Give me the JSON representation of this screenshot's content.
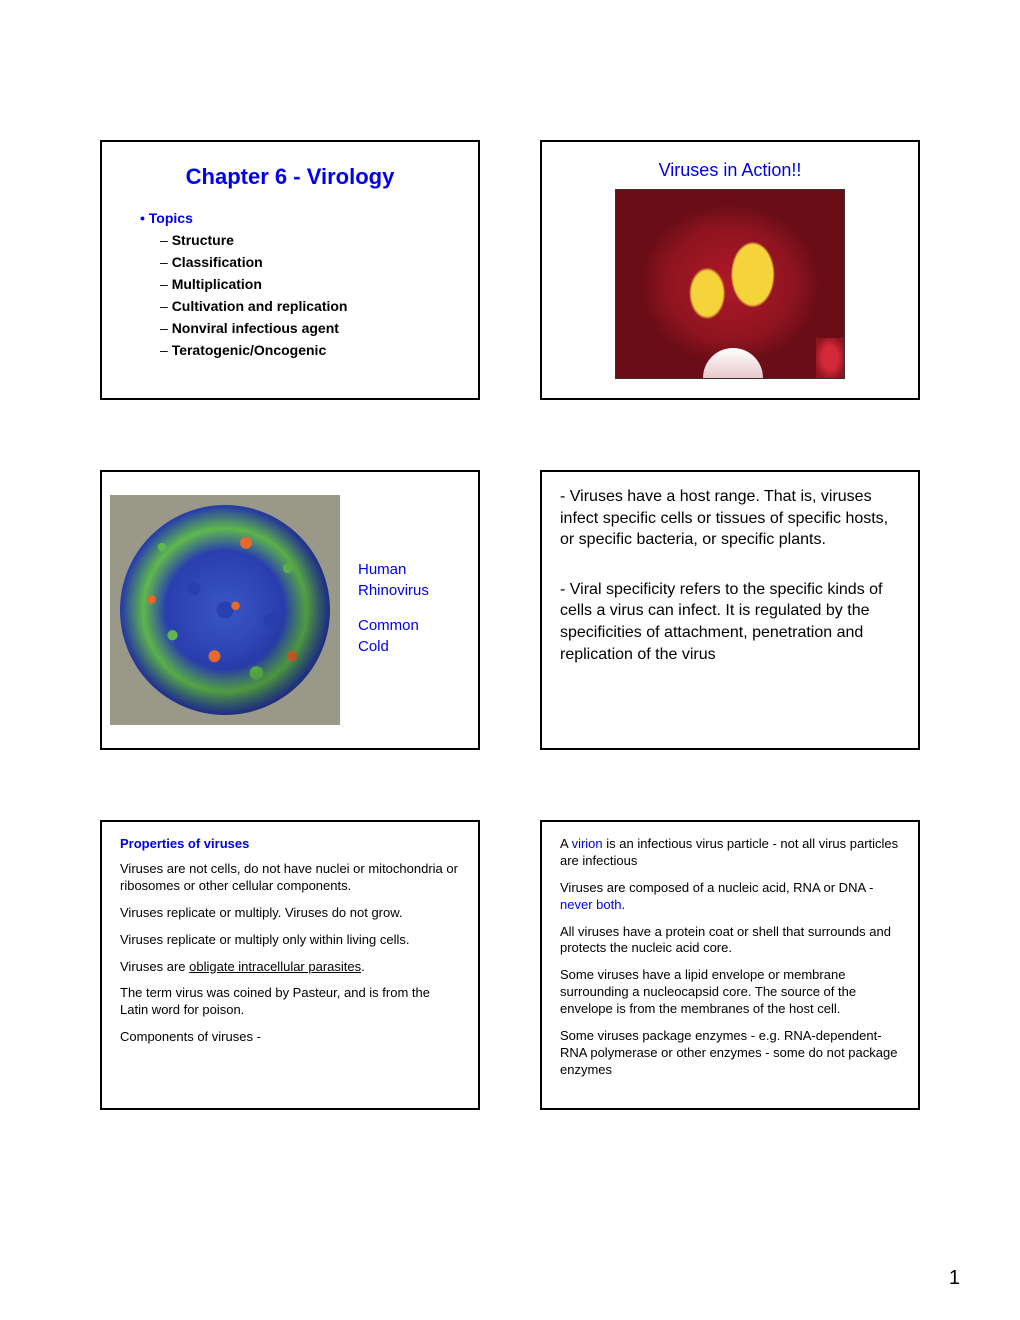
{
  "page_number": "1",
  "slide1": {
    "title": "Chapter 6 - Virology",
    "topics_label": "Topics",
    "items": [
      "Structure",
      "Classification",
      "Multiplication",
      "Cultivation and replication",
      "Nonviral infectious agent",
      "Teratogenic/Oncogenic"
    ]
  },
  "slide2": {
    "title": "Viruses in Action!!",
    "image_desc": "tulip-with-virus-streaks"
  },
  "slide3": {
    "image_desc": "rhinovirus-capsid-model",
    "label1": "Human",
    "label2": "Rhinovirus",
    "label3": "Common",
    "label4": "Cold"
  },
  "slide4": {
    "p1": "- Viruses have a host range.  That is, viruses infect specific cells or tissues of specific hosts, or specific bacteria, or specific plants.",
    "p2": "- Viral specificity refers to the specific kinds of cells a virus can infect.  It is regulated by the specificities of attachment, penetration and replication of the virus"
  },
  "slide5": {
    "heading": "Properties of viruses",
    "p1": "Viruses are not cells, do not have nuclei or mitochondria or ribosomes or other cellular components.",
    "p2": "Viruses replicate or multiply.  Viruses do not grow.",
    "p3": "Viruses replicate or multiply only within living cells.",
    "p4a": "Viruses are ",
    "p4u": "obligate intracellular parasites",
    "p4b": ".",
    "p5": "The term virus was coined by Pasteur, and is from the Latin word for poison.",
    "p6": "Components of viruses -"
  },
  "slide6": {
    "p1a": "A ",
    "p1blue": "virion",
    "p1b": " is an infectious virus particle - not all virus particles are infectious",
    "p2a": "Viruses are composed of a nucleic acid, RNA or DNA - ",
    "p2blue": "never both",
    "p2b": ".",
    "p3": "All viruses have a protein coat or shell that surrounds and protects the nucleic acid core.",
    "p4": "Some viruses have a lipid envelope or membrane surrounding a nucleocapsid core.  The source of the envelope is from the membranes of the host cell.",
    "p5": "Some viruses package enzymes - e.g. RNA-dependent-RNA polymerase or other enzymes - some do not package enzymes"
  },
  "colors": {
    "link_blue": "#0000ee",
    "text_black": "#000000",
    "border": "#000000",
    "background": "#ffffff"
  }
}
